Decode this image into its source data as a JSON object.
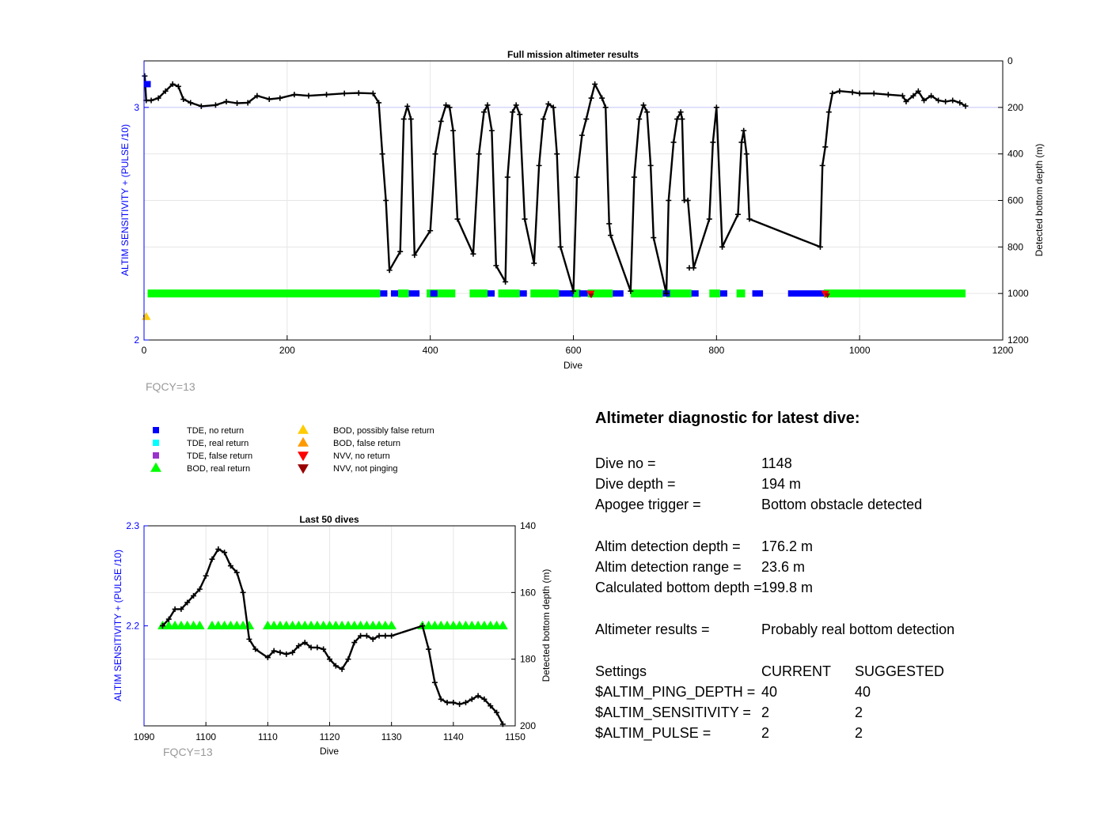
{
  "colors": {
    "axis": "#000000",
    "left_axis": "#0000ff",
    "grid": "#e6e6e6",
    "ref_line": "#c8c8ff",
    "fqcy": "#999999",
    "tde_no_return": "#0000ff",
    "tde_real_return": "#00ffff",
    "tde_false_return": "#9933cc",
    "bod_real_return": "#00ff00",
    "bod_possibly_false": "#ffcc00",
    "bod_false": "#ff9900",
    "nvv_no_return": "#ff0000",
    "nvv_not_pinging": "#990000",
    "depth_line": "#000000"
  },
  "chart_data": [
    {
      "type": "line",
      "title": "Full mission altimeter results",
      "xlabel": "Dive",
      "ylabel_left": "ALTIM SENSITIVITY + (PULSE /10)",
      "ylabel_right": "Detected bottom depth (m)",
      "xlim": [
        0,
        1200
      ],
      "ylim_left": [
        2,
        3.2
      ],
      "ylim_right": [
        1200,
        0
      ],
      "right_axis_reversed": true,
      "x_ticks": [
        "0",
        "200",
        "400",
        "600",
        "800",
        "1000",
        "1200"
      ],
      "left_ticks": [
        "2",
        "3"
      ],
      "right_ticks": [
        "0",
        "200",
        "400",
        "600",
        "800",
        "1000",
        "1200"
      ],
      "grid": true,
      "annotation": "FQCY=13",
      "depth_series": [
        [
          1,
          65
        ],
        [
          3,
          170
        ],
        [
          10,
          170
        ],
        [
          20,
          160
        ],
        [
          30,
          130
        ],
        [
          40,
          100
        ],
        [
          48,
          110
        ],
        [
          55,
          165
        ],
        [
          65,
          180
        ],
        [
          80,
          195
        ],
        [
          100,
          190
        ],
        [
          115,
          175
        ],
        [
          130,
          182
        ],
        [
          145,
          180
        ],
        [
          158,
          150
        ],
        [
          175,
          165
        ],
        [
          190,
          160
        ],
        [
          210,
          145
        ],
        [
          230,
          150
        ],
        [
          255,
          145
        ],
        [
          280,
          140
        ],
        [
          300,
          138
        ],
        [
          320,
          140
        ],
        [
          328,
          180
        ],
        [
          333,
          400
        ],
        [
          338,
          600
        ],
        [
          343,
          900
        ],
        [
          358,
          820
        ],
        [
          363,
          250
        ],
        [
          368,
          195
        ],
        [
          373,
          250
        ],
        [
          378,
          835
        ],
        [
          400,
          730
        ],
        [
          407,
          400
        ],
        [
          415,
          260
        ],
        [
          422,
          190
        ],
        [
          427,
          200
        ],
        [
          432,
          300
        ],
        [
          438,
          680
        ],
        [
          460,
          830
        ],
        [
          468,
          400
        ],
        [
          475,
          220
        ],
        [
          480,
          190
        ],
        [
          486,
          300
        ],
        [
          492,
          880
        ],
        [
          505,
          950
        ],
        [
          508,
          500
        ],
        [
          515,
          220
        ],
        [
          520,
          190
        ],
        [
          525,
          230
        ],
        [
          532,
          680
        ],
        [
          545,
          870
        ],
        [
          552,
          450
        ],
        [
          558,
          250
        ],
        [
          565,
          185
        ],
        [
          572,
          200
        ],
        [
          577,
          400
        ],
        [
          582,
          800
        ],
        [
          600,
          990
        ],
        [
          605,
          500
        ],
        [
          612,
          320
        ],
        [
          618,
          250
        ],
        [
          625,
          160
        ],
        [
          630,
          100
        ],
        [
          640,
          160
        ],
        [
          645,
          200
        ],
        [
          650,
          700
        ],
        [
          652,
          750
        ],
        [
          680,
          990
        ],
        [
          685,
          500
        ],
        [
          692,
          250
        ],
        [
          698,
          190
        ],
        [
          703,
          220
        ],
        [
          708,
          450
        ],
        [
          712,
          760
        ],
        [
          730,
          1000
        ],
        [
          733,
          600
        ],
        [
          740,
          350
        ],
        [
          745,
          250
        ],
        [
          750,
          220
        ],
        [
          752,
          250
        ],
        [
          755,
          600
        ],
        [
          760,
          600
        ],
        [
          768,
          890
        ],
        [
          790,
          680
        ],
        [
          795,
          350
        ],
        [
          800,
          200
        ],
        [
          808,
          800
        ],
        [
          830,
          660
        ],
        [
          835,
          350
        ],
        [
          838,
          300
        ],
        [
          842,
          400
        ],
        [
          846,
          680
        ],
        [
          945,
          800
        ],
        [
          948,
          450
        ],
        [
          952,
          370
        ],
        [
          957,
          220
        ],
        [
          962,
          140
        ],
        [
          972,
          130
        ],
        [
          990,
          135
        ],
        [
          1000,
          140
        ],
        [
          1020,
          140
        ],
        [
          1040,
          145
        ],
        [
          1060,
          150
        ],
        [
          1065,
          175
        ],
        [
          1075,
          150
        ],
        [
          1082,
          130
        ],
        [
          1090,
          170
        ],
        [
          1100,
          150
        ],
        [
          1110,
          170
        ],
        [
          1120,
          175
        ],
        [
          1130,
          170
        ],
        [
          1140,
          180
        ],
        [
          1148,
          194
        ]
      ],
      "isolated_points": [
        [
          762,
          890
        ]
      ],
      "band_value": 1000,
      "bod_real_segments": [
        [
          5,
          330
        ],
        [
          355,
          370
        ],
        [
          395,
          435
        ],
        [
          455,
          480
        ],
        [
          495,
          525
        ],
        [
          540,
          580
        ],
        [
          598,
          610
        ],
        [
          620,
          655
        ],
        [
          680,
          725
        ],
        [
          730,
          765
        ],
        [
          790,
          805
        ],
        [
          828,
          840
        ],
        [
          950,
          1148
        ]
      ],
      "tde_no_return_segments": [
        [
          330,
          340
        ],
        [
          345,
          355
        ],
        [
          370,
          385
        ],
        [
          400,
          410
        ],
        [
          480,
          490
        ],
        [
          525,
          535
        ],
        [
          580,
          600
        ],
        [
          608,
          620
        ],
        [
          655,
          670
        ],
        [
          725,
          735
        ],
        [
          765,
          775
        ],
        [
          805,
          815
        ],
        [
          850,
          865
        ],
        [
          900,
          950
        ]
      ],
      "tde_no_return_marker": [
        5,
        3.1
      ],
      "bod_possibly_false_marker": [
        3,
        2.1
      ],
      "nvv_no_return_markers": [
        [
          624,
          1000
        ],
        [
          952,
          1000
        ]
      ],
      "nvv_not_pinging_markers": [
        [
          625,
          1008
        ],
        [
          955,
          1008
        ]
      ]
    },
    {
      "type": "line",
      "title": "Last 50 dives",
      "xlabel": "Dive",
      "ylabel_left": "ALTIM SENSITIVITY + (PULSE /10)",
      "ylabel_right": "Detected bottom depth (m)",
      "xlim": [
        1090,
        1150
      ],
      "ylim_left": [
        2.1,
        2.3
      ],
      "ylim_right": [
        200,
        140
      ],
      "right_axis_reversed": true,
      "x_ticks": [
        "1090",
        "1100",
        "1110",
        "1120",
        "1130",
        "1140",
        "1150"
      ],
      "left_ticks": [
        "2.2",
        "2.3"
      ],
      "right_ticks": [
        "140",
        "160",
        "180",
        "200"
      ],
      "grid": true,
      "annotation": "FQCY=13",
      "depth_series": [
        [
          1093,
          170
        ],
        [
          1094,
          168
        ],
        [
          1095,
          165
        ],
        [
          1096,
          165
        ],
        [
          1097,
          163
        ],
        [
          1098,
          161
        ],
        [
          1099,
          159
        ],
        [
          1100,
          155
        ],
        [
          1101,
          150
        ],
        [
          1102,
          147
        ],
        [
          1103,
          148
        ],
        [
          1104,
          152
        ],
        [
          1105,
          154
        ],
        [
          1106,
          160
        ],
        [
          1107,
          174
        ],
        [
          1108,
          177
        ],
        [
          1110,
          179.5
        ],
        [
          1111,
          177.5
        ],
        [
          1112,
          178
        ],
        [
          1113,
          178.5
        ],
        [
          1114,
          178
        ],
        [
          1115,
          176
        ],
        [
          1116,
          175
        ],
        [
          1117,
          176.5
        ],
        [
          1118,
          176.5
        ],
        [
          1119,
          177
        ],
        [
          1120,
          180
        ],
        [
          1121,
          182
        ],
        [
          1122,
          183
        ],
        [
          1123,
          180
        ],
        [
          1124,
          175
        ],
        [
          1125,
          173
        ],
        [
          1126,
          173
        ],
        [
          1127,
          174
        ],
        [
          1128,
          173
        ],
        [
          1129,
          173
        ],
        [
          1130,
          173
        ],
        [
          1135,
          170
        ],
        [
          1136,
          177
        ],
        [
          1137,
          187
        ],
        [
          1138,
          192
        ],
        [
          1139,
          193
        ],
        [
          1140,
          193
        ],
        [
          1141,
          193.5
        ],
        [
          1142,
          193
        ],
        [
          1143,
          192
        ],
        [
          1144,
          191
        ],
        [
          1145,
          192
        ],
        [
          1146,
          194
        ],
        [
          1147,
          196
        ],
        [
          1148,
          199.5
        ]
      ],
      "band_value": 170,
      "bod_real_markers": [
        1093,
        1094,
        1095,
        1096,
        1097,
        1098,
        1099,
        1101,
        1102,
        1103,
        1104,
        1105,
        1106,
        1107,
        1110,
        1111,
        1112,
        1113,
        1114,
        1115,
        1116,
        1117,
        1118,
        1119,
        1120,
        1121,
        1122,
        1123,
        1124,
        1125,
        1126,
        1127,
        1128,
        1129,
        1130,
        1135,
        1136,
        1137,
        1138,
        1139,
        1140,
        1141,
        1142,
        1143,
        1144,
        1145,
        1146,
        1147,
        1148
      ]
    }
  ],
  "legend": {
    "items": [
      {
        "label": "TDE, no return",
        "marker": "square",
        "color": "#0000ff"
      },
      {
        "label": "TDE, real return",
        "marker": "square",
        "color": "#00ffff"
      },
      {
        "label": "TDE, false return",
        "marker": "square",
        "color": "#9933cc"
      },
      {
        "label": "BOD, real return",
        "marker": "triangle-up",
        "color": "#00ff00"
      },
      {
        "label": "BOD, possibly false return",
        "marker": "triangle-up",
        "color": "#ffcc00"
      },
      {
        "label": "BOD, false return",
        "marker": "triangle-up",
        "color": "#ff9900"
      },
      {
        "label": "NVV, no return",
        "marker": "triangle-down",
        "color": "#ff0000"
      },
      {
        "label": "NVV, not pinging",
        "marker": "triangle-down",
        "color": "#990000"
      }
    ]
  },
  "diagnostic": {
    "title": "Altimeter diagnostic for latest dive:",
    "rows": [
      {
        "label": "Dive no =",
        "value": "1148"
      },
      {
        "label": "Dive depth =",
        "value": "194 m"
      },
      {
        "label": "Apogee trigger =",
        "value": "Bottom obstacle detected"
      },
      {
        "label": "Altim detection depth =",
        "value": "176.2 m"
      },
      {
        "label": "Altim detection range =",
        "value": "23.6 m"
      },
      {
        "label": "Calculated bottom depth =",
        "value": "199.8 m"
      },
      {
        "label": "Altimeter results =",
        "value": "Probably real bottom detection"
      }
    ],
    "settings_header": {
      "label": "Settings",
      "current": "CURRENT",
      "suggested": "SUGGESTED"
    },
    "settings": [
      {
        "label": "$ALTIM_PING_DEPTH =",
        "current": "40",
        "suggested": "40"
      },
      {
        "label": "$ALTIM_SENSITIVITY =",
        "current": "2",
        "suggested": "2"
      },
      {
        "label": "$ALTIM_PULSE =",
        "current": "2",
        "suggested": "2"
      }
    ]
  }
}
